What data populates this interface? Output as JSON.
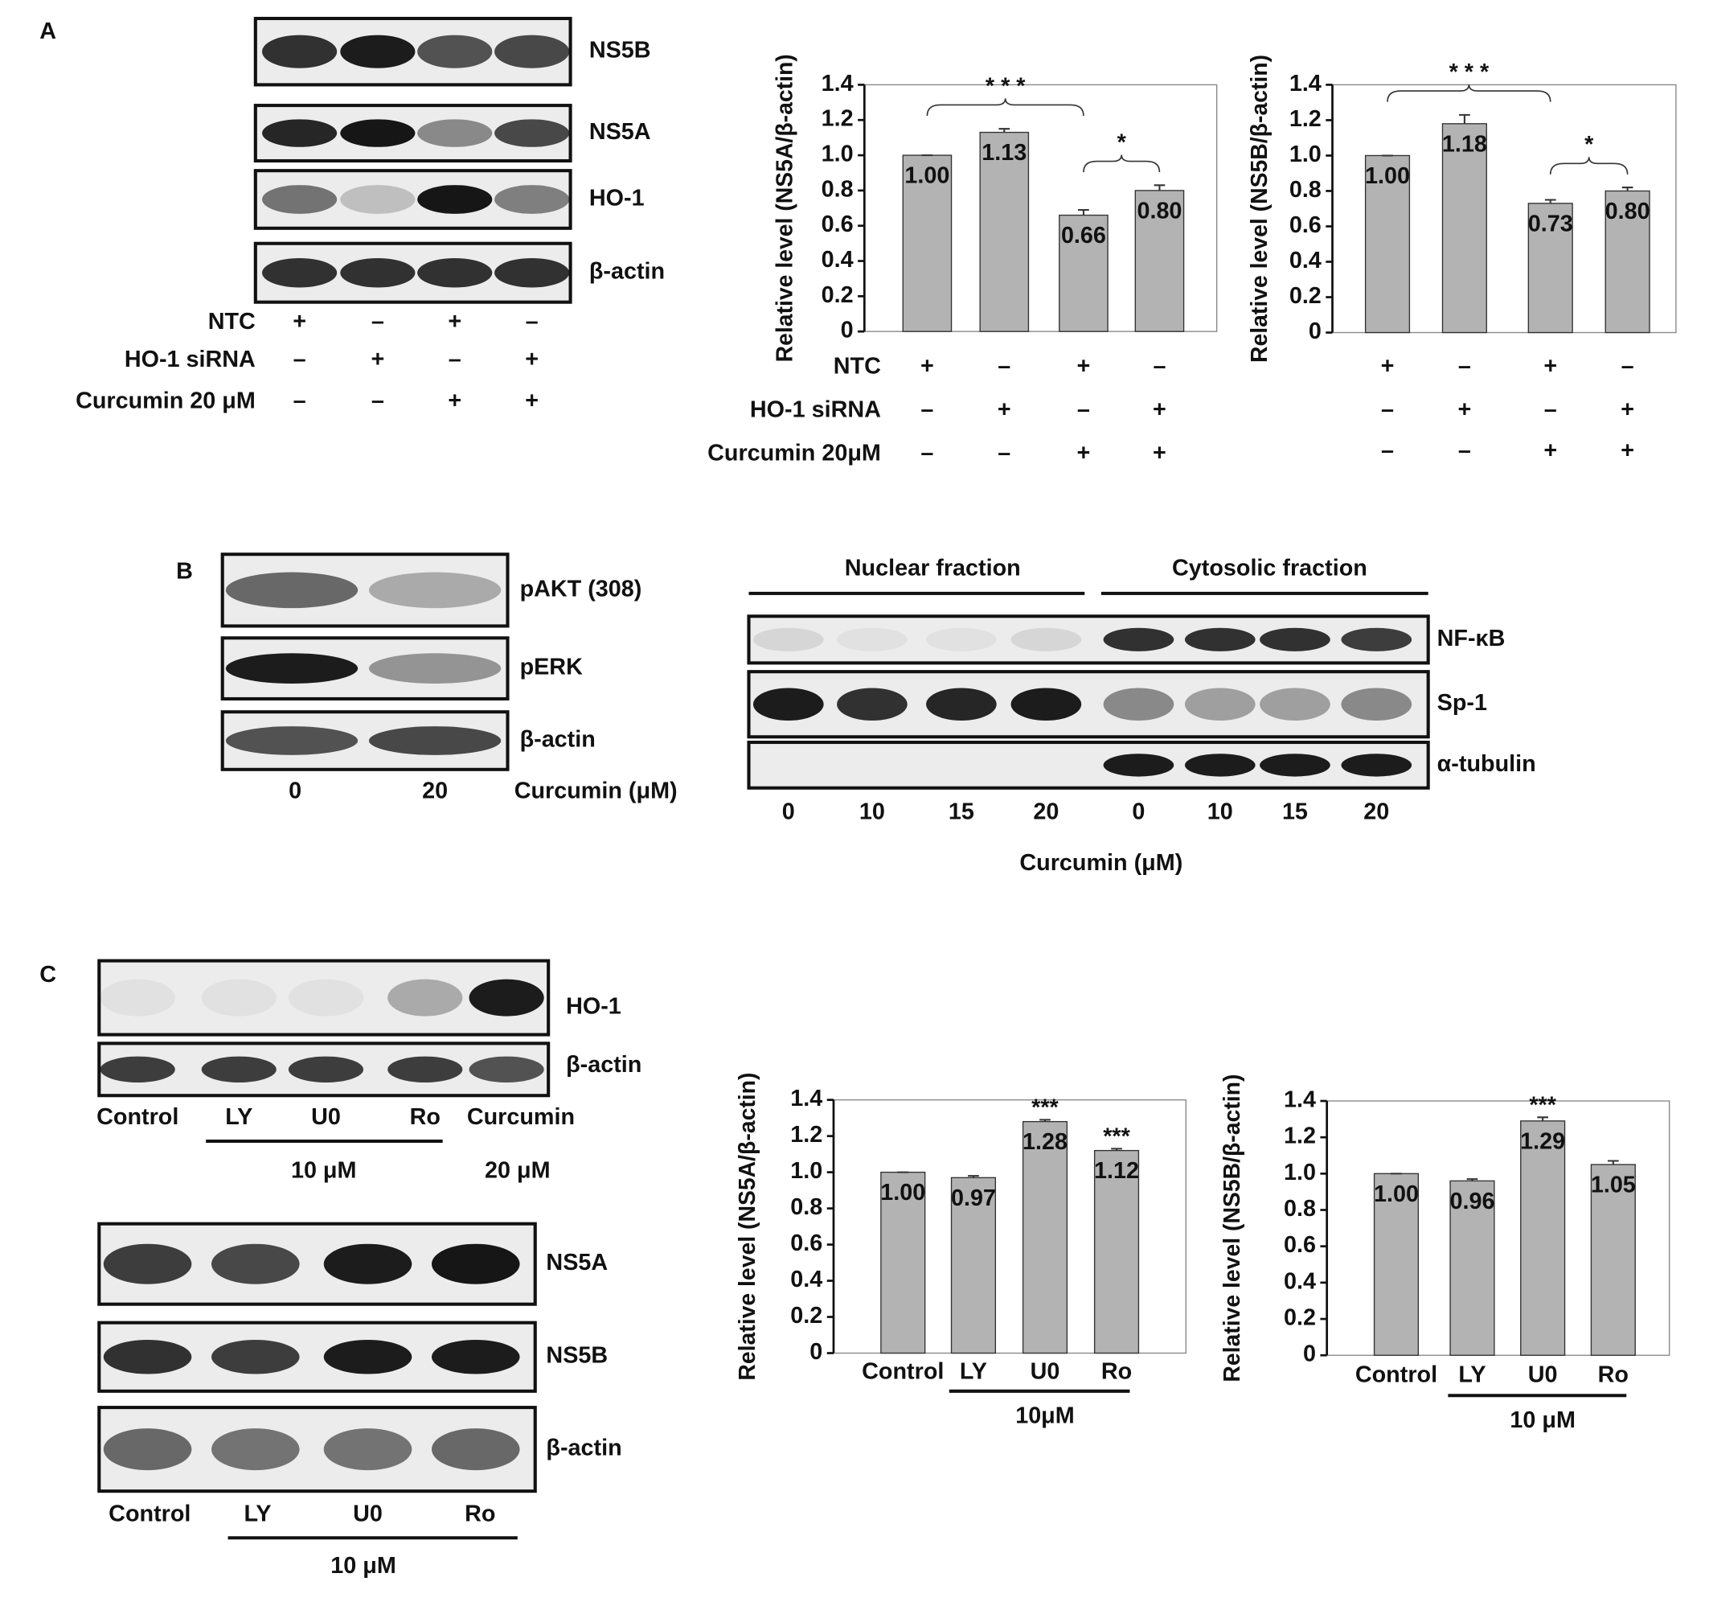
{
  "figure": {
    "panel_a": {
      "letter": "A",
      "blot_labels": [
        "NS5B",
        "NS5A",
        "HO-1",
        "β-actin"
      ],
      "conditions": [
        {
          "label": "NTC",
          "marks": [
            "+",
            "–",
            "+",
            "–"
          ]
        },
        {
          "label": "HO-1 siRNA",
          "marks": [
            "–",
            "+",
            "–",
            "+"
          ]
        },
        {
          "label": "Curcumin 20 μM",
          "marks": [
            "–",
            "–",
            "+",
            "+"
          ]
        }
      ]
    },
    "panel_b": {
      "letter": "B",
      "left_labels": [
        "pAKT (308)",
        "pERK",
        "β-actin"
      ],
      "left_lanes": [
        "0",
        "20"
      ],
      "left_axis": "Curcumin (μM)",
      "fractions": [
        "Nuclear fraction",
        "Cytosolic fraction"
      ],
      "right_labels": [
        "NF-κB",
        "Sp-1",
        "α-tubulin"
      ],
      "right_lanes": [
        "0",
        "10",
        "15",
        "20",
        "0",
        "10",
        "15",
        "20"
      ],
      "right_axis": "Curcumin (μM)"
    },
    "panel_c": {
      "letter": "C",
      "top_labels": [
        "HO-1",
        "β-actin"
      ],
      "top_lanes": [
        "Control",
        "LY",
        "U0",
        "Ro",
        "Curcumin"
      ],
      "top_groups": [
        "10 μM",
        "20 μM"
      ],
      "bottom_labels": [
        "NS5A",
        "NS5B",
        "β-actin"
      ],
      "bottom_lanes": [
        "Control",
        "LY",
        "U0",
        "Ro"
      ],
      "bottom_group": "10 μM"
    }
  },
  "chart_data": [
    {
      "type": "bar",
      "ylabel": "Relative level (NS5A/β-actin)",
      "categories": [
        null,
        null,
        null,
        null
      ],
      "values": [
        1.0,
        1.13,
        0.66,
        0.8
      ],
      "value_labels": [
        "1.00",
        "1.13",
        "0.66",
        "0.80"
      ],
      "errors": [
        0,
        0.02,
        0.03,
        0.03
      ],
      "color": "#b3b3b3",
      "ylim": [
        0,
        1.4
      ],
      "yticks": [
        0,
        0.2,
        0.4,
        0.6,
        0.8,
        {
          "value": 1,
          "label": "1.0"
        },
        1.2,
        1.4
      ],
      "annotations": [
        {
          "text": "* * *",
          "between": [
            0,
            2
          ]
        },
        {
          "text": "*",
          "between": [
            2,
            3
          ]
        }
      ],
      "conditions": [
        {
          "label": "NTC",
          "marks": [
            "+",
            "–",
            "+",
            "–"
          ]
        },
        {
          "label": "HO-1 siRNA",
          "marks": [
            "–",
            "+",
            "–",
            "+"
          ]
        },
        {
          "label": "Curcumin 20μM",
          "marks": [
            "–",
            "–",
            "+",
            "+"
          ]
        }
      ]
    },
    {
      "type": "bar",
      "ylabel": "Relative level (NS5B/β-actin)",
      "categories": [
        null,
        null,
        null,
        null
      ],
      "values": [
        1.0,
        1.18,
        0.73,
        0.8
      ],
      "value_labels": [
        "1.00",
        "1.18",
        "0.73",
        "0.80"
      ],
      "errors": [
        0,
        0.05,
        0.02,
        0.02
      ],
      "color": "#b3b3b3",
      "ylim": [
        0,
        1.4
      ],
      "yticks": [
        0,
        0.2,
        0.4,
        0.6,
        0.8,
        {
          "value": 1,
          "label": "1.0"
        },
        1.2,
        1.4
      ],
      "annotations": [
        {
          "text": "* * *",
          "between": [
            0,
            2
          ]
        },
        {
          "text": "*",
          "between": [
            2,
            3
          ]
        }
      ],
      "conditions": [
        {
          "marks": [
            "+",
            "–",
            "+",
            "–"
          ]
        },
        {
          "marks": [
            "–",
            "+",
            "–",
            "+"
          ]
        },
        {
          "marks": [
            "–",
            "–",
            "+",
            "+"
          ]
        }
      ]
    },
    {
      "type": "bar",
      "ylabel": "Relative level (NS5A/β-actin)",
      "categories": [
        "Control",
        "LY",
        "U0",
        "Ro"
      ],
      "values": [
        1.0,
        0.97,
        1.28,
        1.12
      ],
      "value_labels": [
        "1.00",
        "0.97",
        "1.28",
        "1.12"
      ],
      "errors": [
        0,
        0.01,
        0.01,
        0.01
      ],
      "significance": [
        null,
        null,
        "***",
        "***"
      ],
      "color": "#b3b3b3",
      "ylim": [
        0,
        1.4
      ],
      "yticks": [
        0,
        0.2,
        0.4,
        0.6,
        0.8,
        {
          "value": 1,
          "label": "1.0"
        },
        1.2,
        1.4
      ],
      "group": {
        "label": "10μM",
        "categories": [
          1,
          3
        ]
      }
    },
    {
      "type": "bar",
      "ylabel": "Relative level (NS5B/β-actin)",
      "categories": [
        "Control",
        "LY",
        "U0",
        "Ro"
      ],
      "values": [
        1.0,
        0.96,
        1.29,
        1.05
      ],
      "value_labels": [
        "1.00",
        "0.96",
        "1.29",
        "1.05"
      ],
      "errors": [
        0,
        0.01,
        0.02,
        0.02
      ],
      "significance": [
        null,
        null,
        "***",
        null
      ],
      "color": "#b3b3b3",
      "ylim": [
        0,
        1.4
      ],
      "yticks": [
        0,
        0.2,
        0.4,
        0.6,
        0.8,
        {
          "value": 1,
          "label": "1.0"
        },
        1.2,
        1.4
      ],
      "group": {
        "label": "10 μM",
        "categories": [
          1,
          3
        ]
      }
    }
  ]
}
